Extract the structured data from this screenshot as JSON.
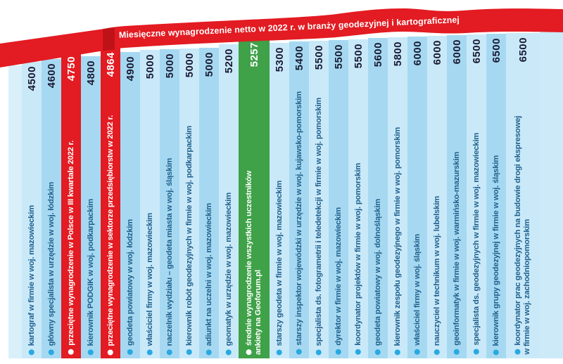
{
  "title": "Miesięczne wynagrodzenie netto w 2022 r. w branży geodezyjnej i kartograficznej",
  "colors": {
    "ribbon_red": "#e31b22",
    "ribbon_fold_red": "#bf1218",
    "highlight_red_bar": "#e31b22",
    "highlight_green_bar": "#3fa148",
    "bar_blue_light": "#c9e9f9",
    "bar_blue_dark": "#a6d9f1",
    "value_text": "#191933",
    "label_text": "#20608d",
    "bullet_cyan": "#29a9e1"
  },
  "chart_data": {
    "type": "bar",
    "title": "Miesięczne wynagrodzenie netto w 2022 r. w branży geodezyjnej i kartograficznej",
    "orientation": "vertical-columns with rotated labels",
    "value_range": [
      4500,
      6500
    ],
    "legend_position": "none",
    "grid": false,
    "bars": [
      {
        "label": "kartograf w firmie w woj. mazowieckim",
        "value": 4500,
        "highlight": "none"
      },
      {
        "label": "główny specjalista w urzędzie w woj. łódzkim",
        "value": 4600,
        "highlight": "none"
      },
      {
        "label": "przeciętne wynagrodzenie w Polsce w III kwartale 2022 r.",
        "value": 4750,
        "highlight": "red"
      },
      {
        "label": "kierownik PODGIK w woj. podkarpackim",
        "value": 4800,
        "highlight": "none"
      },
      {
        "label": "przeciętne wynagrodzenie w sektorze przedsiębiorstw w 2022 r.",
        "value": 4864,
        "highlight": "red"
      },
      {
        "label": "geodeta powiatowy w woj. łódzkim",
        "value": 4900,
        "highlight": "none"
      },
      {
        "label": "właściciel firmy w woj. mazowieckim",
        "value": 5000,
        "highlight": "none"
      },
      {
        "label": "naczelnik wydziału – geodeta miasta w woj. śląskim",
        "value": 5000,
        "highlight": "none"
      },
      {
        "label": "kierownik robót geodezyjnych w firmie w woj. podkarpackim",
        "value": 5000,
        "highlight": "none"
      },
      {
        "label": "adiunkt na uczelni w woj. mazowieckim",
        "value": 5000,
        "highlight": "none"
      },
      {
        "label": "geomatyk w urzędzie w woj. mazowieckim",
        "value": 5200,
        "highlight": "none"
      },
      {
        "label": "średnie wynagrodzenie wszystkich uczestników\nankiety na Geoforum.pl",
        "value": 5257,
        "highlight": "green"
      },
      {
        "label": "starszy geodeta w firmie w woj. mazowieckim",
        "value": 5300,
        "highlight": "none"
      },
      {
        "label": "starszy inspektor wojewódzki w urzędzie w woj. kujawsko-pomorskim",
        "value": 5400,
        "highlight": "none"
      },
      {
        "label": "specjalista ds. fotogrametrii i teledetekcji w firmie w woj. pomorskim",
        "value": 5500,
        "highlight": "none"
      },
      {
        "label": "dyrektor w firmie w woj. mazowieckim",
        "value": 5500,
        "highlight": "none"
      },
      {
        "label": "koordynator projektów w firmie w woj. pomorskim",
        "value": 5500,
        "highlight": "none"
      },
      {
        "label": "geodeta powiatowy w woj. dolnośląskim",
        "value": 5600,
        "highlight": "none"
      },
      {
        "label": "kierownik zespołu geodezyjnego w firmie w woj. pomorskim",
        "value": 5800,
        "highlight": "none"
      },
      {
        "label": "właściciel firmy w woj. śląskim",
        "value": 6000,
        "highlight": "none"
      },
      {
        "label": "nauczyciel w technikum w woj. lubelskim",
        "value": 6000,
        "highlight": "none"
      },
      {
        "label": "geoinformatyk w firmie w woj. warmińsko-mazurskim",
        "value": 6000,
        "highlight": "none"
      },
      {
        "label": "specjalista ds. geodezyjnych w firmie w woj. mazowieckim",
        "value": 6500,
        "highlight": "none"
      },
      {
        "label": "kierownik grupy geodezyjnej w firmie w woj. śląskim",
        "value": 6500,
        "highlight": "none"
      },
      {
        "label": "koordynator prac geodezyjnych na budowie drogi ekspresowej\nw firmie w woj. zachodniopomorskim",
        "value": 6500,
        "highlight": "none"
      }
    ]
  }
}
